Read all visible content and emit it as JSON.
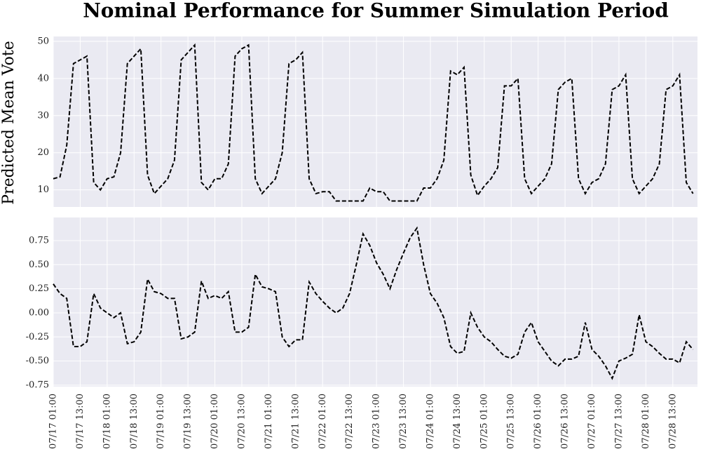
{
  "figure": {
    "title": "Nominal Performance for Summer Simulation Period",
    "ylabel": "Predicted Mean Vote"
  },
  "chart_data": [
    {
      "type": "line",
      "sharex": true,
      "ylim": [
        5.4,
        51.3
      ],
      "yticks": [
        10,
        20,
        30,
        40,
        50
      ],
      "grid": true,
      "series": [
        {
          "color": "#000000",
          "linestyle": "dashed",
          "values": [
            13,
            13.5,
            22,
            44,
            45,
            46,
            12,
            10,
            13,
            13.5,
            20,
            44,
            46,
            48,
            14,
            9,
            11,
            13,
            18,
            45,
            47,
            49,
            12,
            10,
            13,
            13,
            17,
            46,
            48,
            49,
            13,
            9,
            11,
            13,
            20,
            44,
            45,
            47,
            13,
            9,
            9.5,
            9.5,
            7,
            7,
            7,
            7,
            7,
            10.5,
            9.5,
            9.5,
            7,
            7,
            7,
            7,
            7,
            10.5,
            10.5,
            13,
            18,
            42,
            41,
            43,
            14,
            8.5,
            11,
            13,
            16,
            38,
            38,
            40,
            13,
            9,
            11,
            13,
            17,
            37,
            39,
            40,
            13,
            9,
            12,
            13,
            17,
            37,
            38,
            41,
            13,
            9,
            11,
            13,
            17,
            37,
            38,
            41,
            12,
            9
          ]
        }
      ]
    },
    {
      "type": "line",
      "ylim": [
        -0.765,
        0.99
      ],
      "yticks": [
        {
          "value": 0.75,
          "label": "0.75"
        },
        {
          "value": 0.5,
          "label": "0.50"
        },
        {
          "value": 0.25,
          "label": "0.25"
        },
        {
          "value": 0,
          "label": "0.00"
        },
        {
          "value": -0.25,
          "label": "-0.25"
        },
        {
          "value": -0.5,
          "label": "-0.50"
        },
        {
          "value": -0.75,
          "label": "-0.75"
        }
      ],
      "grid": true,
      "xlim": [
        "07/17 01:00",
        "07/29 00:00"
      ],
      "xticks": [
        "07/17 01:00",
        "07/17 13:00",
        "07/18 01:00",
        "07/18 13:00",
        "07/19 01:00",
        "07/19 13:00",
        "07/20 01:00",
        "07/20 13:00",
        "07/21 01:00",
        "07/21 13:00",
        "07/22 01:00",
        "07/22 13:00",
        "07/23 01:00",
        "07/23 13:00",
        "07/24 01:00",
        "07/24 13:00",
        "07/25 01:00",
        "07/25 13:00",
        "07/26 01:00",
        "07/26 13:00",
        "07/27 01:00",
        "07/27 13:00",
        "07/28 01:00",
        "07/28 13:00"
      ],
      "x": [
        "07/17 01:00",
        "07/17 04:00",
        "07/17 07:00",
        "07/17 10:00",
        "07/17 13:00",
        "07/17 16:00",
        "07/17 19:00",
        "07/17 22:00",
        "07/18 01:00",
        "07/18 04:00",
        "07/18 07:00",
        "07/18 10:00",
        "07/18 13:00",
        "07/18 16:00",
        "07/18 19:00",
        "07/18 22:00",
        "07/19 01:00",
        "07/19 04:00",
        "07/19 07:00",
        "07/19 10:00",
        "07/19 13:00",
        "07/19 16:00",
        "07/19 19:00",
        "07/19 22:00",
        "07/20 01:00",
        "07/20 04:00",
        "07/20 07:00",
        "07/20 10:00",
        "07/20 13:00",
        "07/20 16:00",
        "07/20 19:00",
        "07/20 22:00",
        "07/21 01:00",
        "07/21 04:00",
        "07/21 07:00",
        "07/21 10:00",
        "07/21 13:00",
        "07/21 16:00",
        "07/21 19:00",
        "07/21 22:00",
        "07/22 01:00",
        "07/22 04:00",
        "07/22 07:00",
        "07/22 10:00",
        "07/22 13:00",
        "07/22 16:00",
        "07/22 19:00",
        "07/22 22:00",
        "07/23 01:00",
        "07/23 04:00",
        "07/23 07:00",
        "07/23 10:00",
        "07/23 13:00",
        "07/23 16:00",
        "07/23 19:00",
        "07/23 22:00",
        "07/24 01:00",
        "07/24 04:00",
        "07/24 07:00",
        "07/24 10:00",
        "07/24 13:00",
        "07/24 16:00",
        "07/24 19:00",
        "07/24 22:00",
        "07/25 01:00",
        "07/25 04:00",
        "07/25 07:00",
        "07/25 10:00",
        "07/25 13:00",
        "07/25 16:00",
        "07/25 19:00",
        "07/25 22:00",
        "07/26 01:00",
        "07/26 04:00",
        "07/26 07:00",
        "07/26 10:00",
        "07/26 13:00",
        "07/26 16:00",
        "07/26 19:00",
        "07/26 22:00",
        "07/27 01:00",
        "07/27 04:00",
        "07/27 07:00",
        "07/27 10:00",
        "07/27 13:00",
        "07/27 16:00",
        "07/27 19:00",
        "07/27 22:00",
        "07/28 01:00",
        "07/28 04:00",
        "07/28 07:00",
        "07/28 10:00",
        "07/28 13:00",
        "07/28 16:00",
        "07/28 19:00",
        "07/28 22:00"
      ],
      "series": [
        {
          "color": "#000000",
          "linestyle": "dashed",
          "values": [
            0.3,
            0.2,
            0.15,
            -0.35,
            -0.35,
            -0.3,
            0.2,
            0.05,
            0.0,
            -0.05,
            0.0,
            -0.32,
            -0.3,
            -0.2,
            0.35,
            0.22,
            0.2,
            0.15,
            0.15,
            -0.27,
            -0.25,
            -0.2,
            0.33,
            0.15,
            0.18,
            0.15,
            0.22,
            -0.2,
            -0.2,
            -0.15,
            0.4,
            0.27,
            0.25,
            0.22,
            -0.25,
            -0.35,
            -0.28,
            -0.28,
            0.32,
            0.2,
            0.12,
            0.05,
            0.0,
            0.05,
            0.2,
            0.5,
            0.82,
            0.7,
            0.52,
            0.4,
            0.25,
            0.45,
            0.62,
            0.78,
            0.88,
            0.5,
            0.2,
            0.1,
            -0.05,
            -0.35,
            -0.42,
            -0.4,
            0.0,
            -0.15,
            -0.25,
            -0.3,
            -0.38,
            -0.45,
            -0.47,
            -0.43,
            -0.2,
            -0.1,
            -0.3,
            -0.4,
            -0.5,
            -0.55,
            -0.48,
            -0.48,
            -0.45,
            -0.1,
            -0.38,
            -0.45,
            -0.55,
            -0.68,
            -0.5,
            -0.47,
            -0.43,
            -0.02,
            -0.3,
            -0.35,
            -0.42,
            -0.48,
            -0.48,
            -0.52,
            -0.3,
            -0.38
          ]
        }
      ]
    }
  ]
}
